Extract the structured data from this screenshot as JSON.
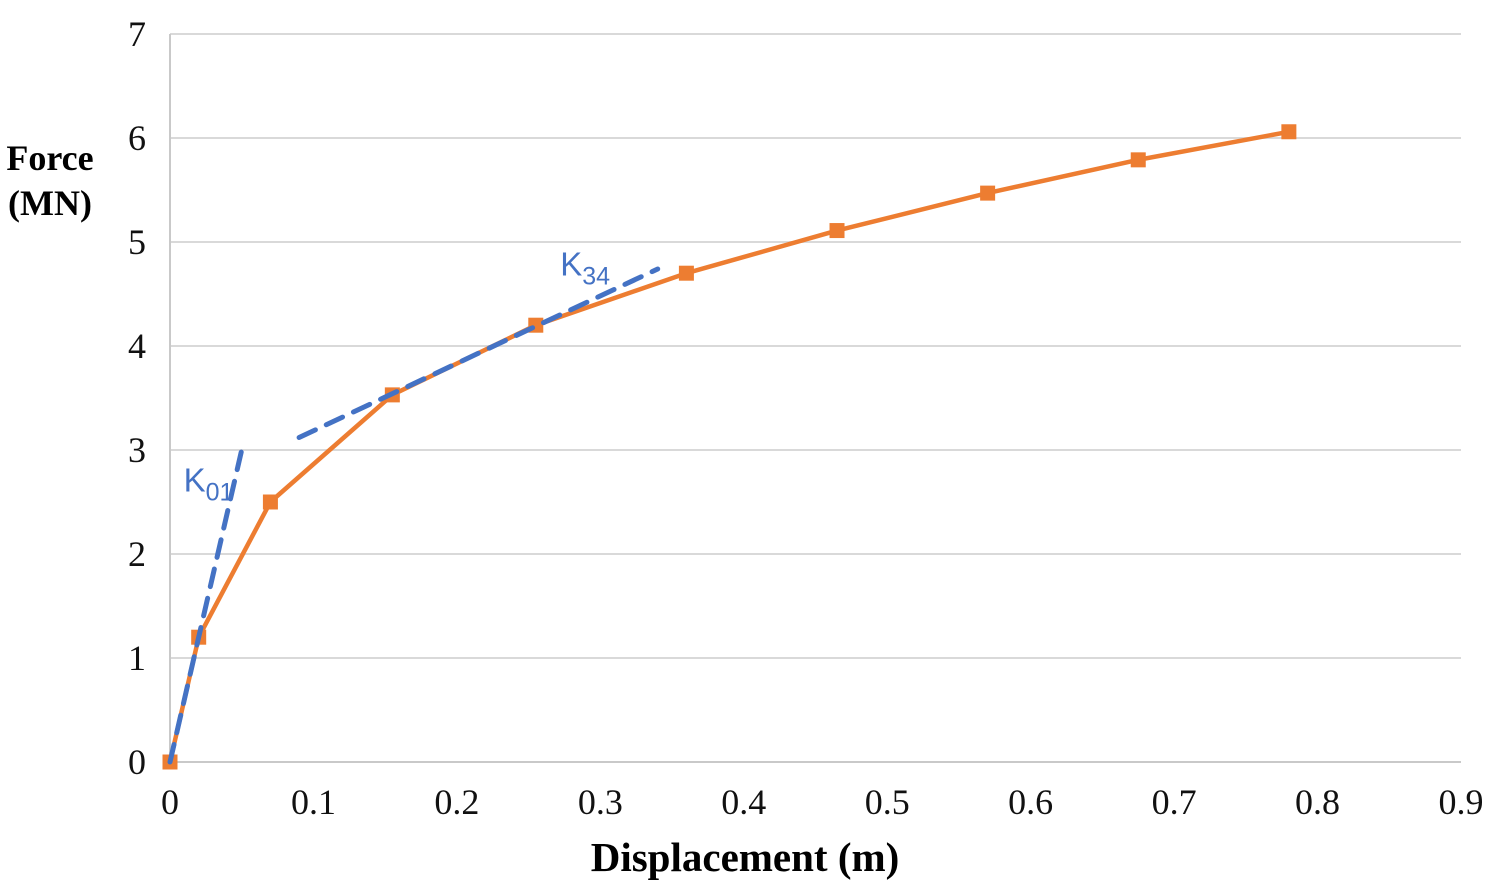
{
  "chart_data": {
    "type": "line",
    "title": "",
    "xlabel": "Displacement (m)",
    "ylabel": "Force (MN)",
    "ylabel_lines": [
      "Force",
      "(MN)"
    ],
    "xlim": [
      0,
      0.9
    ],
    "ylim": [
      0,
      7
    ],
    "x_ticks": [
      0,
      0.1,
      0.2,
      0.3,
      0.4,
      0.5,
      0.6,
      0.7,
      0.8,
      0.9
    ],
    "x_tick_labels": [
      "0",
      "0.1",
      "0.2",
      "0.3",
      "0.4",
      "0.5",
      "0.6",
      "0.7",
      "0.8",
      "0.9"
    ],
    "y_ticks": [
      0,
      1,
      2,
      3,
      4,
      5,
      6,
      7
    ],
    "y_tick_labels": [
      "0",
      "1",
      "2",
      "3",
      "4",
      "5",
      "6",
      "7"
    ],
    "grid": "horizontal-only",
    "legend": "none",
    "colors": {
      "curve": "#ED7D31",
      "tangent": "#4472C4",
      "gridline": "#D9D9D9",
      "axis": "#C9C9C9",
      "text": "#111111"
    },
    "series": [
      {
        "name": "force-displacement-curve",
        "color": "#ED7D31",
        "style": "solid",
        "marker": "square",
        "points": [
          [
            0,
            0
          ],
          [
            0.02,
            1.2
          ],
          [
            0.07,
            2.5
          ],
          [
            0.155,
            3.53
          ],
          [
            0.255,
            4.2
          ],
          [
            0.36,
            4.7
          ],
          [
            0.465,
            5.11
          ],
          [
            0.57,
            5.47
          ],
          [
            0.675,
            5.79
          ],
          [
            0.78,
            6.06
          ]
        ]
      },
      {
        "name": "K01-tangent-line",
        "color": "#4472C4",
        "style": "dashed",
        "marker": "none",
        "points": [
          [
            0,
            0
          ],
          [
            0.05,
            3.0
          ]
        ]
      },
      {
        "name": "K34-tangent-line",
        "color": "#4472C4",
        "style": "dashed",
        "marker": "none",
        "points": [
          [
            0.09,
            3.12
          ],
          [
            0.34,
            4.74
          ]
        ]
      }
    ],
    "annotations": [
      {
        "id": "K01-label",
        "main": "K",
        "subscript": "01",
        "x": 0.0095,
        "y": 2.6
      },
      {
        "id": "K34-label",
        "main": "K",
        "subscript": "34",
        "x": 0.272,
        "y": 4.68
      }
    ]
  }
}
